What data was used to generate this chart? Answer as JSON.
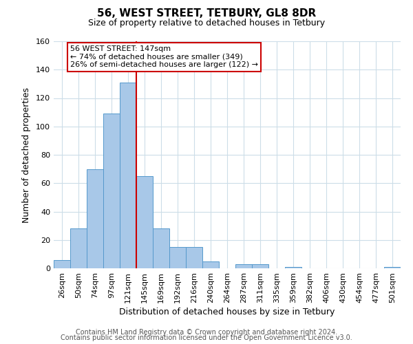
{
  "title": "56, WEST STREET, TETBURY, GL8 8DR",
  "subtitle": "Size of property relative to detached houses in Tetbury",
  "xlabel": "Distribution of detached houses by size in Tetbury",
  "ylabel": "Number of detached properties",
  "bar_labels": [
    "26sqm",
    "50sqm",
    "74sqm",
    "97sqm",
    "121sqm",
    "145sqm",
    "169sqm",
    "192sqm",
    "216sqm",
    "240sqm",
    "264sqm",
    "287sqm",
    "311sqm",
    "335sqm",
    "359sqm",
    "382sqm",
    "406sqm",
    "430sqm",
    "454sqm",
    "477sqm",
    "501sqm"
  ],
  "bar_values": [
    6,
    28,
    70,
    109,
    131,
    65,
    28,
    15,
    15,
    5,
    0,
    3,
    3,
    0,
    1,
    0,
    0,
    0,
    0,
    0,
    1
  ],
  "bar_color": "#a8c8e8",
  "bar_edge_color": "#5599cc",
  "annotation_title": "56 WEST STREET: 147sqm",
  "annotation_line1": "← 74% of detached houses are smaller (349)",
  "annotation_line2": "26% of semi-detached houses are larger (122) →",
  "annotation_box_color": "#ffffff",
  "annotation_box_edge": "#cc0000",
  "vline_color": "#cc0000",
  "vline_bar_idx": 5,
  "ylim": [
    0,
    160
  ],
  "yticks": [
    0,
    20,
    40,
    60,
    80,
    100,
    120,
    140,
    160
  ],
  "grid_color": "#ccdde8",
  "footer1": "Contains HM Land Registry data © Crown copyright and database right 2024.",
  "footer2": "Contains public sector information licensed under the Open Government Licence v3.0.",
  "title_fontsize": 11,
  "subtitle_fontsize": 9,
  "axis_label_fontsize": 9,
  "tick_fontsize": 8,
  "footer_fontsize": 7
}
